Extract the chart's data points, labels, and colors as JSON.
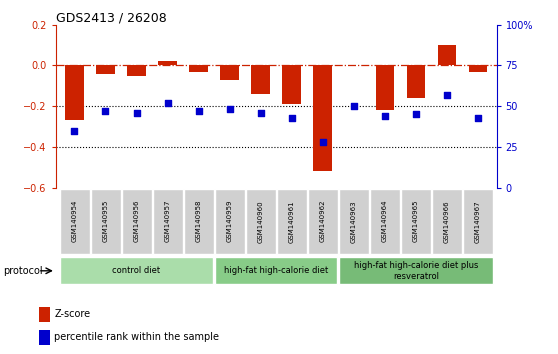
{
  "title": "GDS2413 / 26208",
  "samples": [
    "GSM140954",
    "GSM140955",
    "GSM140956",
    "GSM140957",
    "GSM140958",
    "GSM140959",
    "GSM140960",
    "GSM140961",
    "GSM140962",
    "GSM140963",
    "GSM140964",
    "GSM140965",
    "GSM140966",
    "GSM140967"
  ],
  "zscore": [
    -0.27,
    -0.04,
    -0.05,
    0.02,
    -0.03,
    -0.07,
    -0.14,
    -0.19,
    -0.52,
    0.0,
    -0.22,
    -0.16,
    0.1,
    -0.03
  ],
  "percentile": [
    35,
    47,
    46,
    52,
    47,
    48,
    46,
    43,
    28,
    50,
    44,
    45,
    57,
    43
  ],
  "bar_color": "#cc2200",
  "dot_color": "#0000cc",
  "groups": [
    {
      "label": "control diet",
      "start": 0,
      "end": 5,
      "color": "#aaddaa"
    },
    {
      "label": "high-fat high-calorie diet",
      "start": 5,
      "end": 9,
      "color": "#88cc88"
    },
    {
      "label": "high-fat high-calorie diet plus\nresveratrol",
      "start": 9,
      "end": 14,
      "color": "#77bb77"
    }
  ],
  "ylim_left": [
    -0.6,
    0.2
  ],
  "ylim_right": [
    0,
    100
  ],
  "yticks_left": [
    -0.6,
    -0.4,
    -0.2,
    0.0,
    0.2
  ],
  "yticks_right": [
    0,
    25,
    50,
    75,
    100
  ],
  "ytick_labels_right": [
    "0",
    "25",
    "50",
    "75",
    "100%"
  ],
  "background_color": "#ffffff",
  "protocol_label": "protocol"
}
